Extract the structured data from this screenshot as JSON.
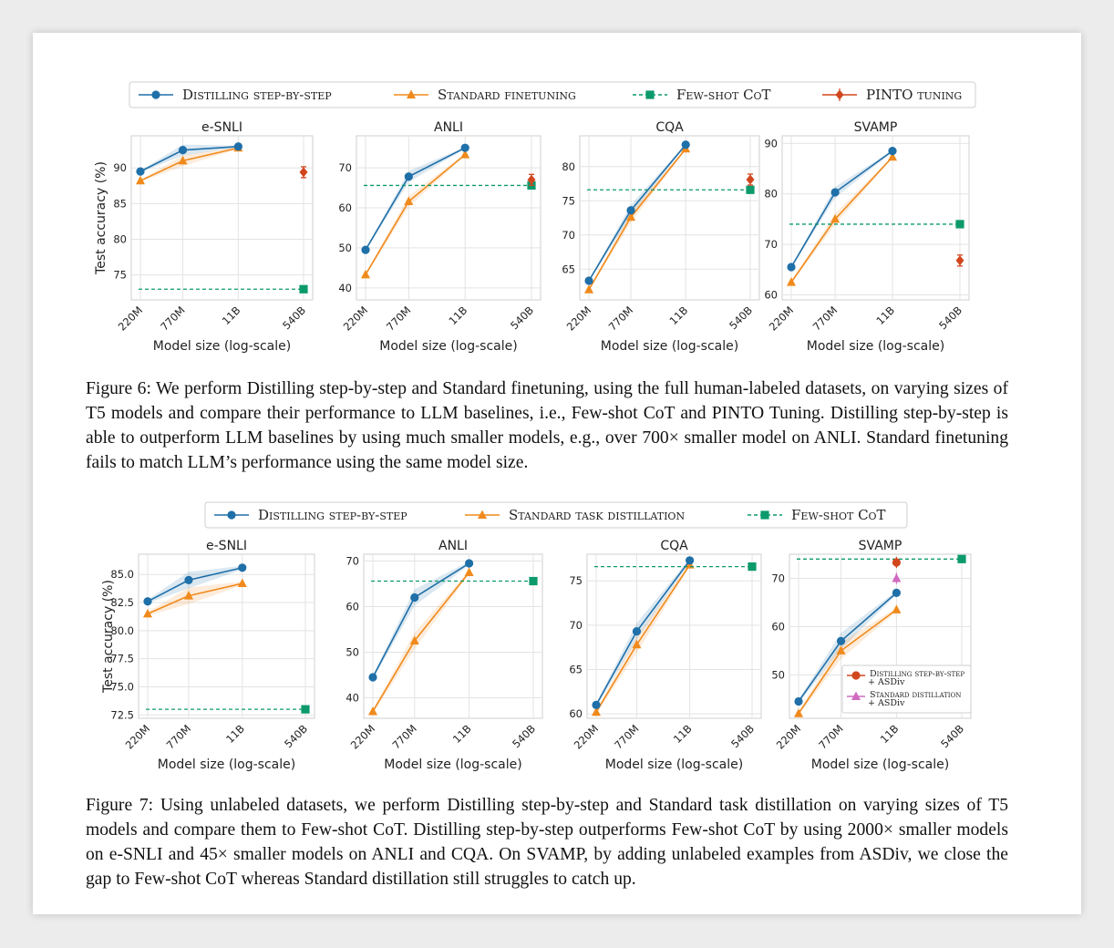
{
  "colors": {
    "blue": "#1f6fa8",
    "orange": "#f08a1c",
    "green": "#0c9a6c",
    "red": "#d2461e",
    "pink": "#d06ac0"
  },
  "figure6": {
    "caption": "Figure 6: We perform Distilling step-by-step and Standard finetuning, using the full human-labeled datasets, on varying sizes of T5 models and compare their performance to LLM baselines, i.e., Few-shot CoT and PINTO Tuning. Distilling step-by-step is able to outperform LLM baselines by using much smaller models, e.g., over 700× smaller model on ANLI. Standard finetuning fails to match LLM’s performance using the same model size.",
    "legend": [
      "Distilling step-by-step",
      "Standard finetuning",
      "Few-shot CoT",
      "PINTO tuning"
    ],
    "chart_data": [
      {
        "type": "line",
        "title": "e-SNLI",
        "xlabel": "Model size (log-scale)",
        "ylabel": "Test accuracy (%)",
        "categories": [
          "220M",
          "770M",
          "11B",
          "540B"
        ],
        "ylim": [
          71.5,
          94.5
        ],
        "yticks": [
          75,
          80,
          85,
          90
        ],
        "grid": true,
        "series": [
          {
            "name": "Distilling step-by-step",
            "values": [
              89.5,
              92.5,
              93.0,
              null
            ]
          },
          {
            "name": "Standard finetuning",
            "values": [
              88.2,
              91.0,
              92.8,
              null
            ]
          },
          {
            "name": "Few-shot CoT",
            "values": [
              null,
              null,
              null,
              73.0
            ],
            "baseline": true
          },
          {
            "name": "PINTO tuning",
            "values": [
              null,
              null,
              null,
              89.4
            ]
          }
        ]
      },
      {
        "type": "line",
        "title": "ANLI",
        "xlabel": "Model size (log-scale)",
        "ylabel": "",
        "categories": [
          "220M",
          "770M",
          "11B",
          "540B"
        ],
        "ylim": [
          37,
          78
        ],
        "yticks": [
          40,
          50,
          60,
          70
        ],
        "grid": true,
        "series": [
          {
            "name": "Distilling step-by-step",
            "values": [
              49.5,
              67.8,
              75.0,
              null
            ]
          },
          {
            "name": "Standard finetuning",
            "values": [
              43.3,
              61.6,
              73.3,
              null
            ]
          },
          {
            "name": "Few-shot CoT",
            "values": [
              null,
              null,
              null,
              65.6
            ],
            "baseline": true
          },
          {
            "name": "PINTO tuning",
            "values": [
              null,
              null,
              null,
              67.0
            ]
          }
        ]
      },
      {
        "type": "line",
        "title": "CQA",
        "xlabel": "Model size (log-scale)",
        "ylabel": "",
        "categories": [
          "220M",
          "770M",
          "11B",
          "540B"
        ],
        "ylim": [
          60.5,
          84.5
        ],
        "yticks": [
          65,
          70,
          75,
          80
        ],
        "grid": true,
        "series": [
          {
            "name": "Distilling step-by-step",
            "values": [
              63.3,
              73.6,
              83.2,
              null
            ]
          },
          {
            "name": "Standard finetuning",
            "values": [
              62.0,
              72.6,
              82.6,
              null
            ]
          },
          {
            "name": "Few-shot CoT",
            "values": [
              null,
              null,
              null,
              76.6
            ],
            "baseline": true
          },
          {
            "name": "PINTO tuning",
            "values": [
              null,
              null,
              null,
              78.1
            ]
          }
        ]
      },
      {
        "type": "line",
        "title": "SVAMP",
        "xlabel": "Model size (log-scale)",
        "ylabel": "",
        "categories": [
          "220M",
          "770M",
          "11B",
          "540B"
        ],
        "ylim": [
          59,
          91.5
        ],
        "yticks": [
          60,
          70,
          80,
          90
        ],
        "grid": true,
        "series": [
          {
            "name": "Distilling step-by-step",
            "values": [
              65.5,
              80.3,
              88.5,
              null
            ]
          },
          {
            "name": "Standard finetuning",
            "values": [
              62.5,
              75.0,
              87.3,
              null
            ]
          },
          {
            "name": "Few-shot CoT",
            "values": [
              null,
              null,
              null,
              74.0
            ],
            "baseline": true
          },
          {
            "name": "PINTO tuning",
            "values": [
              null,
              null,
              null,
              66.8
            ]
          }
        ]
      }
    ]
  },
  "figure7": {
    "caption": "Figure 7: Using unlabeled datasets, we perform Distilling step-by-step and Standard task distillation on varying sizes of T5 models and compare them to Few-shot CoT. Distilling step-by-step outperforms Few-shot CoT by using 2000× smaller models on e-SNLI and 45× smaller models on ANLI and CQA. On SVAMP, by adding unlabeled examples from ASDiv, we close the gap to Few-shot CoT whereas Standard distillation still struggles to catch up.",
    "legend": [
      "Distilling step-by-step",
      "Standard task distillation",
      "Few-shot CoT"
    ],
    "inset_legend": [
      "Distilling step-by-step",
      "+ ASDiv",
      "Standard distillation",
      "+ ASDiv"
    ],
    "chart_data": [
      {
        "type": "line",
        "title": "e-SNLI",
        "xlabel": "Model size (log-scale)",
        "ylabel": "Test accuracy (%)",
        "categories": [
          "220M",
          "770M",
          "11B",
          "540B"
        ],
        "ylim": [
          72.2,
          86.8
        ],
        "yticks": [
          72.5,
          75.0,
          77.5,
          80.0,
          82.5,
          85.0
        ],
        "grid": true,
        "series": [
          {
            "name": "Distilling step-by-step",
            "values": [
              82.6,
              84.5,
              85.6,
              null
            ]
          },
          {
            "name": "Standard task distillation",
            "values": [
              81.5,
              83.1,
              84.2,
              null
            ]
          },
          {
            "name": "Few-shot CoT",
            "values": [
              null,
              null,
              null,
              73.0
            ],
            "baseline": true
          }
        ]
      },
      {
        "type": "line",
        "title": "ANLI",
        "xlabel": "Model size (log-scale)",
        "ylabel": "",
        "categories": [
          "220M",
          "770M",
          "11B",
          "540B"
        ],
        "ylim": [
          35.5,
          71.5
        ],
        "yticks": [
          40,
          50,
          60,
          70
        ],
        "grid": true,
        "series": [
          {
            "name": "Distilling step-by-step",
            "values": [
              44.5,
              62.0,
              69.5,
              null
            ]
          },
          {
            "name": "Standard task distillation",
            "values": [
              37.0,
              52.5,
              67.5,
              null
            ]
          },
          {
            "name": "Few-shot CoT",
            "values": [
              null,
              null,
              null,
              65.6
            ],
            "baseline": true
          }
        ]
      },
      {
        "type": "line",
        "title": "CQA",
        "xlabel": "Model size (log-scale)",
        "ylabel": "",
        "categories": [
          "220M",
          "770M",
          "11B",
          "540B"
        ],
        "ylim": [
          59.5,
          78
        ],
        "yticks": [
          60,
          65,
          70,
          75
        ],
        "grid": true,
        "series": [
          {
            "name": "Distilling step-by-step",
            "values": [
              61.0,
              69.3,
              77.3,
              null
            ]
          },
          {
            "name": "Standard task distillation",
            "values": [
              60.2,
              67.8,
              76.8,
              null
            ]
          },
          {
            "name": "Few-shot CoT",
            "values": [
              null,
              null,
              null,
              76.6
            ],
            "baseline": true
          }
        ]
      },
      {
        "type": "line",
        "title": "SVAMP",
        "xlabel": "Model size (log-scale)",
        "ylabel": "",
        "categories": [
          "220M",
          "770M",
          "11B",
          "540B"
        ],
        "ylim": [
          41,
          75
        ],
        "yticks": [
          50,
          60,
          70
        ],
        "grid": true,
        "series": [
          {
            "name": "Distilling step-by-step",
            "values": [
              44.5,
              57.0,
              67.0,
              null
            ]
          },
          {
            "name": "Standard task distillation",
            "values": [
              42.0,
              55.0,
              63.5,
              null
            ]
          },
          {
            "name": "Few-shot CoT",
            "values": [
              null,
              null,
              null,
              74.0
            ],
            "baseline": true
          },
          {
            "name": "Distilling step-by-step + ASDiv",
            "values": [
              null,
              null,
              73.3,
              null
            ]
          },
          {
            "name": "Standard distillation + ASDiv",
            "values": [
              null,
              null,
              70.0,
              null
            ]
          }
        ]
      }
    ]
  }
}
